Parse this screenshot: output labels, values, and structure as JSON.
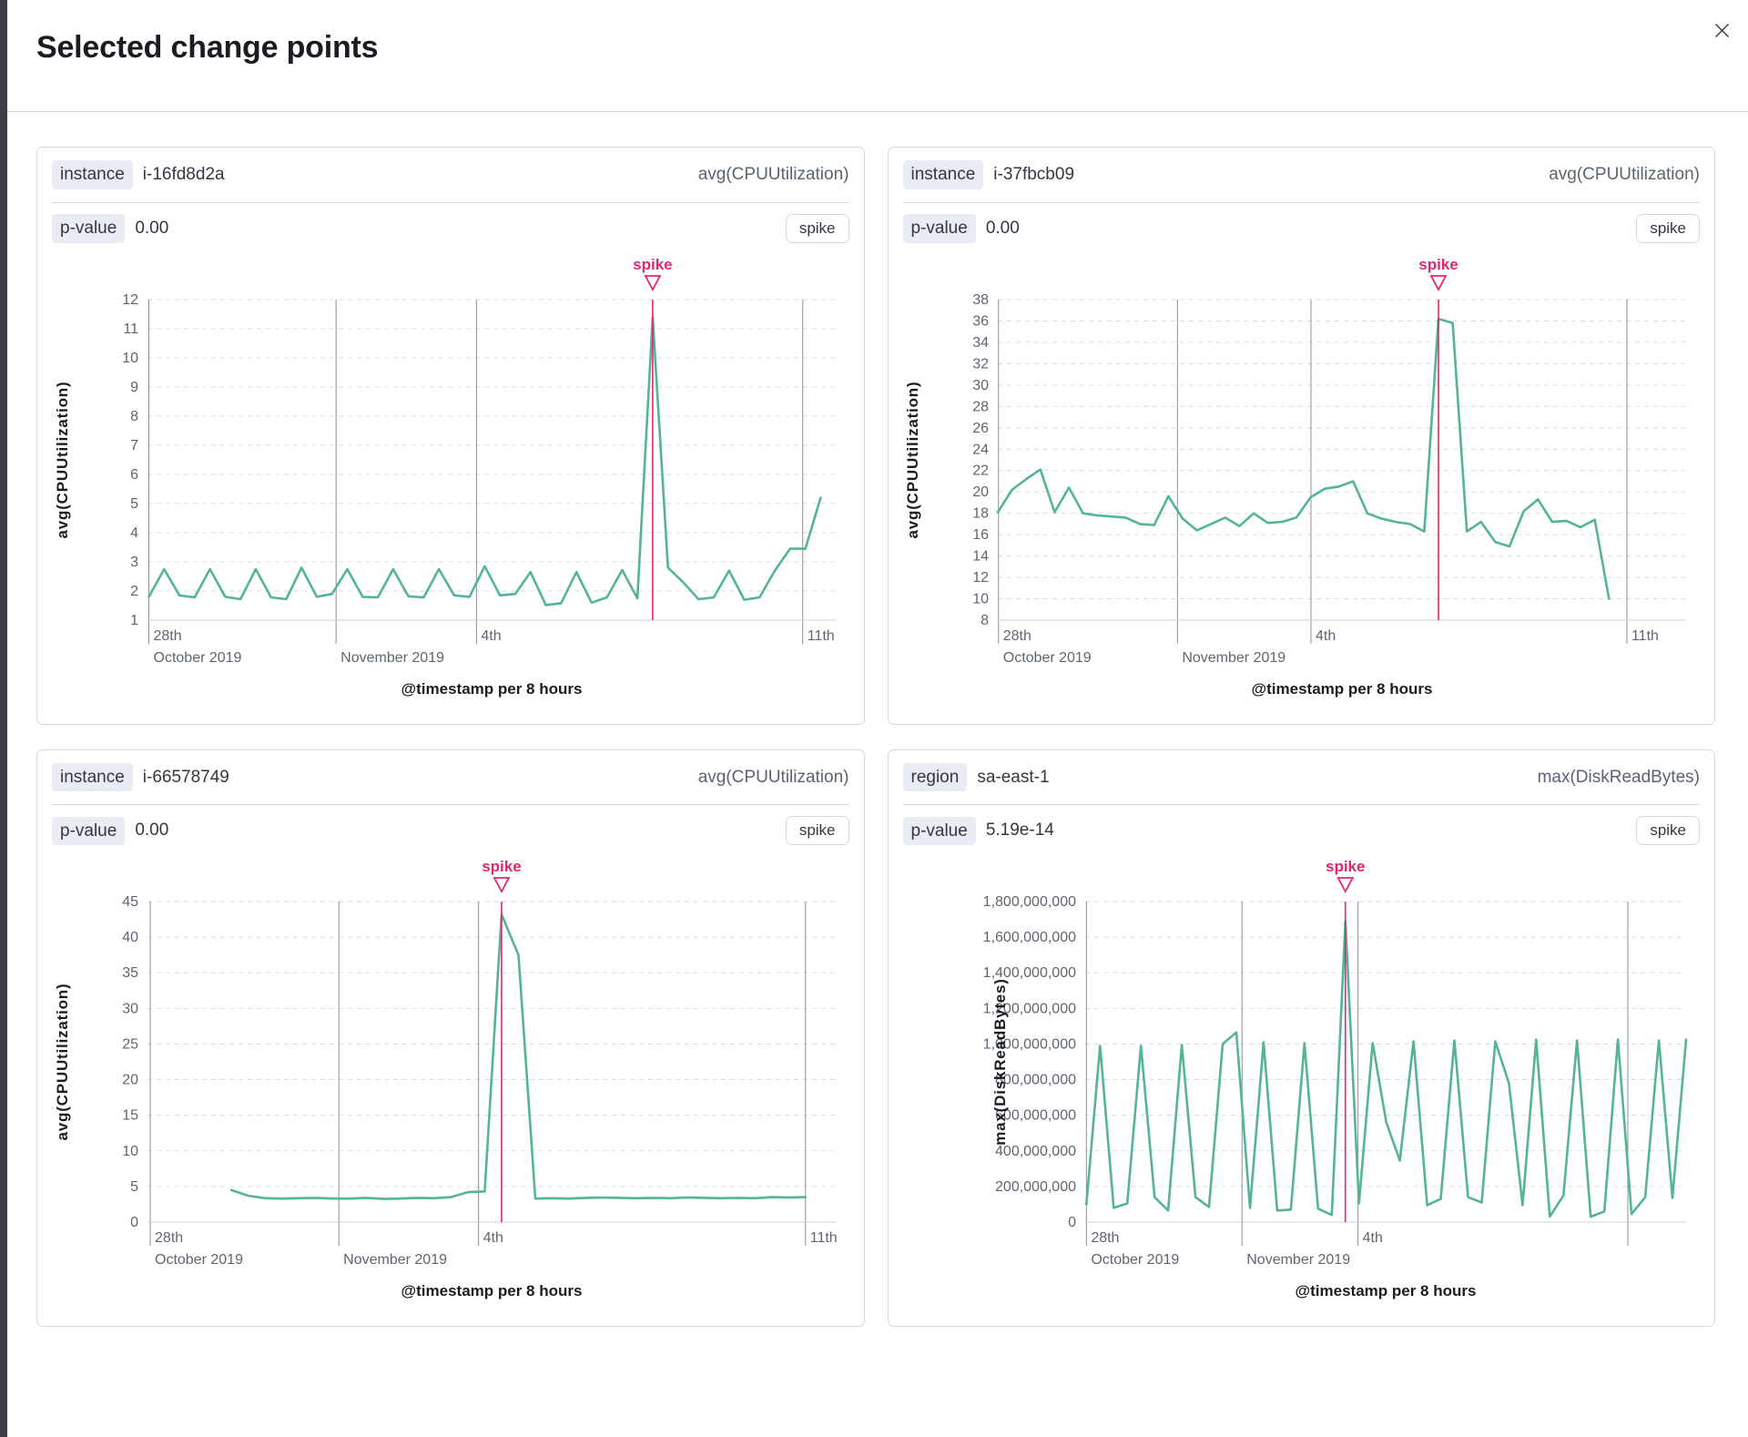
{
  "dialog": {
    "title": "Selected change points"
  },
  "theme": {
    "line_color": "#54b399",
    "accent_color": "#e0276f",
    "hgrid_color": "#d6dce7",
    "vgrid_color": "#8b919b",
    "axisline_color": "#c9cfdb",
    "tick_color": "#5f6570",
    "axis_title_color": "#1a1c21",
    "border_color": "#d3dae6",
    "badge_bg": "#e9edf3"
  },
  "panels": [
    {
      "field_label": "instance",
      "field_value": "i-16fd8d2a",
      "metric": "avg(CPUUtilization)",
      "p_value_label": "p-value",
      "p_value": "0.00",
      "change_type": "spike"
    },
    {
      "field_label": "instance",
      "field_value": "i-37fbcb09",
      "metric": "avg(CPUUtilization)",
      "p_value_label": "p-value",
      "p_value": "0.00",
      "change_type": "spike"
    },
    {
      "field_label": "instance",
      "field_value": "i-66578749",
      "metric": "avg(CPUUtilization)",
      "p_value_label": "p-value",
      "p_value": "0.00",
      "change_type": "spike"
    },
    {
      "field_label": "region",
      "field_value": "sa-east-1",
      "metric": "max(DiskReadBytes)",
      "p_value_label": "p-value",
      "p_value": "5.19e-14",
      "change_type": "spike"
    }
  ],
  "chart_data": [
    {
      "type": "line",
      "ylabel": "avg(CPUUtilization)",
      "xlabel": "@timestamp per 8 hours",
      "annotation": "spike",
      "y_min": 1,
      "y_max": 12,
      "y_step": 1,
      "y_format": "plain",
      "series_span": [
        0.002,
        0.978
      ],
      "spike_index": 33,
      "x_ticks": [
        {
          "pos": 0.002,
          "top": "28th",
          "bottom": "October 2019"
        },
        {
          "pos": 0.274,
          "top": "",
          "bottom": "November 2019"
        },
        {
          "pos": 0.478,
          "top": "4th",
          "bottom": ""
        },
        {
          "pos": 0.952,
          "top": "11th",
          "bottom": ""
        }
      ],
      "values": [
        1.8,
        2.75,
        1.85,
        1.78,
        2.75,
        1.8,
        1.72,
        2.75,
        1.78,
        1.72,
        2.8,
        1.8,
        1.9,
        2.75,
        1.8,
        1.78,
        2.75,
        1.82,
        1.78,
        2.75,
        1.85,
        1.8,
        2.85,
        1.85,
        1.9,
        2.65,
        1.52,
        1.58,
        2.65,
        1.6,
        1.78,
        2.72,
        1.75,
        11.4,
        2.8,
        2.3,
        1.72,
        1.78,
        2.7,
        1.7,
        1.78,
        2.7,
        3.45,
        3.45,
        5.2
      ]
    },
    {
      "type": "line",
      "ylabel": "avg(CPUUtilization)",
      "xlabel": "@timestamp per 8 hours",
      "annotation": "spike",
      "y_min": 8,
      "y_max": 38,
      "y_step": 2,
      "y_format": "plain",
      "series_span": [
        0.0,
        0.888
      ],
      "spike_index": 31,
      "x_ticks": [
        {
          "pos": 0.001,
          "top": "28th",
          "bottom": "October 2019"
        },
        {
          "pos": 0.261,
          "top": "",
          "bottom": "November 2019"
        },
        {
          "pos": 0.455,
          "top": "4th",
          "bottom": ""
        },
        {
          "pos": 0.914,
          "top": "11th",
          "bottom": ""
        }
      ],
      "values": [
        18.1,
        20.2,
        21.2,
        22.1,
        18.1,
        20.4,
        18.0,
        17.8,
        17.7,
        17.6,
        17.0,
        16.9,
        19.6,
        17.5,
        16.4,
        17.0,
        17.6,
        16.8,
        18.0,
        17.1,
        17.2,
        17.6,
        19.5,
        20.3,
        20.5,
        21.0,
        18.0,
        17.5,
        17.2,
        17.0,
        16.3,
        36.2,
        35.8,
        16.3,
        17.2,
        15.3,
        14.9,
        18.2,
        19.3,
        17.2,
        17.3,
        16.7,
        17.4,
        10.0
      ]
    },
    {
      "type": "line",
      "ylabel": "avg(CPUUtilization)",
      "xlabel": "@timestamp per 8 hours",
      "annotation": "spike",
      "y_min": 0,
      "y_max": 45,
      "y_step": 5,
      "y_format": "plain",
      "series_span": [
        0.122,
        0.956
      ],
      "spike_index": 16,
      "x_ticks": [
        {
          "pos": 0.004,
          "top": "28th",
          "bottom": "October 2019"
        },
        {
          "pos": 0.278,
          "top": "",
          "bottom": "November 2019"
        },
        {
          "pos": 0.481,
          "top": "4th",
          "bottom": ""
        },
        {
          "pos": 0.956,
          "top": "11th",
          "bottom": ""
        }
      ],
      "values": [
        4.5,
        3.7,
        3.35,
        3.3,
        3.35,
        3.4,
        3.3,
        3.3,
        3.4,
        3.25,
        3.3,
        3.4,
        3.35,
        3.5,
        4.2,
        4.3,
        43.2,
        37.5,
        3.3,
        3.35,
        3.3,
        3.4,
        3.45,
        3.4,
        3.35,
        3.4,
        3.35,
        3.45,
        3.4,
        3.35,
        3.4,
        3.35,
        3.5,
        3.45,
        3.5
      ]
    },
    {
      "type": "line",
      "ylabel": "max(DiskReadBytes)",
      "xlabel": "@timestamp per 8 hours",
      "annotation": "spike",
      "y_min": 0,
      "y_max": 1800000000,
      "y_step": 200000000,
      "y_format": "comma",
      "series_span": [
        0.002,
        1.0
      ],
      "spike_index": 19,
      "x_ticks": [
        {
          "pos": 0.002,
          "top": "28th",
          "bottom": "October 2019"
        },
        {
          "pos": 0.261,
          "top": "",
          "bottom": "November 2019"
        },
        {
          "pos": 0.454,
          "top": "4th",
          "bottom": ""
        },
        {
          "pos": 0.903,
          "top": "",
          "bottom": ""
        }
      ],
      "values": [
        100000000,
        990000000,
        80000000,
        105000000,
        990000000,
        140000000,
        65000000,
        995000000,
        140000000,
        85000000,
        1000000000,
        1065000000,
        80000000,
        1010000000,
        65000000,
        70000000,
        1005000000,
        75000000,
        40000000,
        1690000000,
        105000000,
        1005000000,
        560000000,
        345000000,
        1015000000,
        95000000,
        130000000,
        1020000000,
        140000000,
        110000000,
        1015000000,
        780000000,
        95000000,
        1025000000,
        30000000,
        150000000,
        1020000000,
        30000000,
        60000000,
        1025000000,
        45000000,
        140000000,
        1020000000,
        135000000,
        1025000000
      ]
    }
  ]
}
